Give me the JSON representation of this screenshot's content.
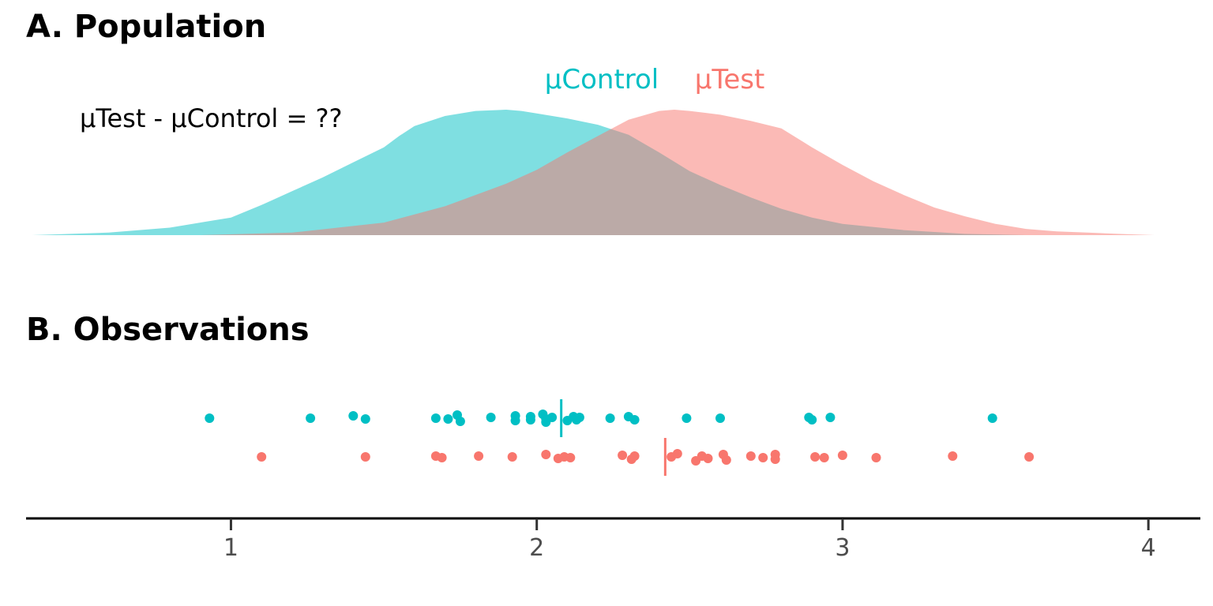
{
  "chart_data": [
    {
      "panel": "A. Population",
      "type": "area",
      "title": "A. Population",
      "annotation": "μTest - μControl = ??",
      "xlim": [
        0.33,
        4.17
      ],
      "grid": false,
      "series": [
        {
          "name": "μControl",
          "color": "#00BFC4",
          "opacity": 0.5,
          "x": [
            0.35,
            0.6,
            0.8,
            0.95,
            1.0,
            1.1,
            1.2,
            1.3,
            1.4,
            1.5,
            1.55,
            1.6,
            1.7,
            1.8,
            1.9,
            1.95,
            2.0,
            2.1,
            2.2,
            2.3,
            2.4,
            2.5,
            2.6,
            2.7,
            2.8,
            2.9,
            3.0,
            3.2,
            3.4,
            3.6
          ],
          "y": [
            0.0,
            0.02,
            0.06,
            0.12,
            0.14,
            0.24,
            0.35,
            0.46,
            0.58,
            0.7,
            0.79,
            0.87,
            0.95,
            0.99,
            1.0,
            0.99,
            0.97,
            0.93,
            0.88,
            0.8,
            0.66,
            0.51,
            0.4,
            0.3,
            0.21,
            0.14,
            0.09,
            0.04,
            0.01,
            0.0
          ]
        },
        {
          "name": "μTest",
          "color": "#F8766D",
          "opacity": 0.5,
          "x": [
            0.9,
            1.2,
            1.5,
            1.7,
            1.9,
            2.0,
            2.1,
            2.2,
            2.3,
            2.4,
            2.45,
            2.5,
            2.6,
            2.7,
            2.8,
            2.9,
            3.0,
            3.1,
            3.2,
            3.3,
            3.4,
            3.5,
            3.6,
            3.7,
            3.8,
            3.9,
            4.02
          ],
          "y": [
            0.0,
            0.02,
            0.1,
            0.23,
            0.41,
            0.52,
            0.66,
            0.79,
            0.92,
            0.99,
            1.0,
            0.99,
            0.96,
            0.91,
            0.85,
            0.7,
            0.56,
            0.43,
            0.32,
            0.22,
            0.15,
            0.09,
            0.05,
            0.03,
            0.02,
            0.01,
            0.0
          ]
        }
      ]
    },
    {
      "panel": "B. Observations",
      "type": "scatter",
      "title": "B. Observations",
      "xlim": [
        0.33,
        4.17
      ],
      "xticks": [
        "1",
        "2",
        "3",
        "4"
      ],
      "grid": false,
      "series": [
        {
          "name": "Control",
          "color": "#00BFC4",
          "mean": 2.08,
          "x": [
            0.93,
            1.26,
            1.4,
            1.44,
            1.67,
            1.71,
            1.74,
            1.75,
            1.85,
            1.93,
            1.93,
            1.98,
            1.98,
            2.02,
            2.03,
            2.03,
            2.05,
            2.1,
            2.12,
            2.13,
            2.14,
            2.24,
            2.3,
            2.32,
            2.49,
            2.6,
            2.89,
            2.9,
            2.96,
            3.49
          ],
          "jitter": [
            0.0,
            0.0,
            -0.3,
            0.1,
            0.0,
            0.1,
            -0.4,
            0.4,
            -0.1,
            -0.3,
            0.3,
            -0.2,
            0.2,
            -0.5,
            0.1,
            0.5,
            -0.1,
            0.3,
            -0.2,
            0.2,
            -0.1,
            0.0,
            -0.2,
            0.2,
            0.0,
            0.0,
            -0.1,
            0.2,
            -0.1,
            0.0
          ]
        },
        {
          "name": "Test",
          "color": "#F8766D",
          "mean": 2.42,
          "x": [
            1.1,
            1.44,
            1.67,
            1.69,
            1.81,
            1.92,
            2.03,
            2.07,
            2.09,
            2.11,
            2.28,
            2.31,
            2.32,
            2.44,
            2.46,
            2.52,
            2.54,
            2.56,
            2.61,
            2.62,
            2.7,
            2.74,
            2.78,
            2.78,
            2.91,
            2.94,
            3.0,
            3.11,
            3.36,
            3.61
          ],
          "jitter": [
            0.0,
            0.0,
            -0.1,
            0.1,
            -0.1,
            0.0,
            -0.3,
            0.2,
            0.0,
            0.1,
            -0.2,
            0.3,
            -0.1,
            0.0,
            -0.4,
            0.5,
            -0.1,
            0.2,
            -0.3,
            0.4,
            -0.1,
            0.1,
            -0.3,
            0.3,
            0.0,
            0.1,
            -0.2,
            0.1,
            -0.1,
            0.0
          ]
        }
      ]
    }
  ]
}
